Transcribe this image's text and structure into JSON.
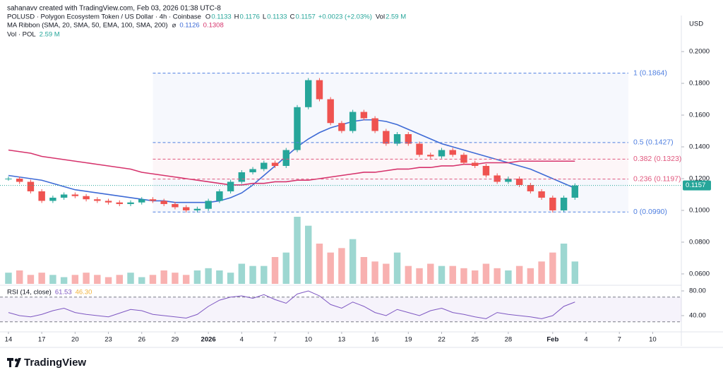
{
  "chart_data": {
    "type": "candlestick",
    "header": {
      "credit": "sahanavv created with TradingView.com, Feb 03, 2026 01:38 UTC-8",
      "symbol": "POLUSD · Polygon Ecosystem Token / US Dollar · 4h · Coinbase",
      "ohlc": [
        {
          "label": "O",
          "value": 0.1133
        },
        {
          "label": "H",
          "value": 0.1176
        },
        {
          "label": "L",
          "value": 0.1133
        },
        {
          "label": "C",
          "value": 0.1157
        }
      ],
      "change": "+0.0023 (+2.03%)",
      "vol_label": "Vol",
      "vol_value": "2.59 M"
    },
    "ma_legend": {
      "name": "MA Ribbon (SMA, 20, SMA, 50, EMA, 100, SMA, 200)",
      "symbol": "⌀",
      "values": [
        0.1126,
        0.1308
      ]
    },
    "volume_legend": {
      "name": "Vol · POL",
      "value": "2.59 M"
    },
    "currency": "USD",
    "brand": "TradingView",
    "x": [
      0,
      1,
      2,
      3,
      4,
      5,
      6,
      7,
      8,
      9,
      10,
      11,
      12,
      13,
      14,
      15,
      16,
      17,
      18,
      19,
      20,
      21,
      22,
      23,
      24,
      25,
      26,
      27,
      28,
      29,
      30,
      31,
      32,
      33,
      34,
      35,
      36,
      37,
      38,
      39,
      40,
      41,
      42,
      43,
      44,
      45,
      46,
      47,
      48,
      49,
      50,
      51
    ],
    "xlim": [
      -0.76,
      60.58
    ],
    "xticks": [
      {
        "value": 0,
        "label": "14"
      },
      {
        "value": 3,
        "label": "17"
      },
      {
        "value": 6,
        "label": "20"
      },
      {
        "value": 9,
        "label": "23"
      },
      {
        "value": 12,
        "label": "26"
      },
      {
        "value": 15,
        "label": "29"
      },
      {
        "value": 18,
        "label": "2026"
      },
      {
        "value": 21,
        "label": "4"
      },
      {
        "value": 24,
        "label": "7"
      },
      {
        "value": 27,
        "label": "10"
      },
      {
        "value": 30,
        "label": "13"
      },
      {
        "value": 33,
        "label": "16"
      },
      {
        "value": 36,
        "label": "19"
      },
      {
        "value": 39,
        "label": "22"
      },
      {
        "value": 42,
        "label": "25"
      },
      {
        "value": 45,
        "label": "28"
      },
      {
        "value": 49,
        "label": "Feb"
      },
      {
        "value": 52,
        "label": "4"
      },
      {
        "value": 55,
        "label": "7"
      },
      {
        "value": 58,
        "label": "10"
      }
    ],
    "ylim": [
      0.0533,
      0.2058
    ],
    "yticks": [
      {
        "value": 0.06,
        "label": "0.0600"
      },
      {
        "value": 0.08,
        "label": "0.0800"
      },
      {
        "value": 0.1,
        "label": "0.1000"
      },
      {
        "value": 0.12,
        "label": "0.1200"
      },
      {
        "value": 0.14,
        "label": "0.1400"
      },
      {
        "value": 0.16,
        "label": "0.1600"
      },
      {
        "value": 0.18,
        "label": "0.1800"
      },
      {
        "value": 0.2,
        "label": "0.2000"
      }
    ],
    "up_color": "#26a69a",
    "down_color": "#ef5350",
    "series": [
      {
        "name": "POLUSD",
        "values": [
          0.12,
          0.118,
          0.112,
          0.106,
          0.108,
          0.11,
          0.109,
          0.107,
          0.106,
          0.105,
          0.104,
          0.105,
          0.107,
          0.106,
          0.104,
          0.102,
          0.1,
          0.101,
          0.106,
          0.112,
          0.118,
          0.124,
          0.126,
          0.13,
          0.128,
          0.138,
          0.165,
          0.182,
          0.17,
          0.155,
          0.15,
          0.162,
          0.158,
          0.15,
          0.142,
          0.148,
          0.142,
          0.135,
          0.134,
          0.138,
          0.135,
          0.13,
          0.128,
          0.122,
          0.118,
          0.12,
          0.116,
          0.112,
          0.108,
          0.1,
          0.108,
          0.1157
        ]
      },
      {
        "color": "#3e6bd6",
        "values": [
          0.122,
          0.121,
          0.12,
          0.119,
          0.117,
          0.115,
          0.113,
          0.112,
          0.111,
          0.11,
          0.109,
          0.108,
          0.107,
          0.106,
          0.106,
          0.105,
          0.105,
          0.105,
          0.105,
          0.106,
          0.108,
          0.111,
          0.116,
          0.122,
          0.128,
          0.134,
          0.14,
          0.145,
          0.149,
          0.152,
          0.154,
          0.156,
          0.157,
          0.157,
          0.156,
          0.154,
          0.151,
          0.148,
          0.145,
          0.142,
          0.14,
          0.138,
          0.136,
          0.134,
          0.132,
          0.13,
          0.128,
          0.126,
          0.123,
          0.12,
          0.117,
          0.114
        ]
      },
      {
        "color": "#d6336c",
        "values": [
          0.138,
          0.137,
          0.136,
          0.134,
          0.133,
          0.132,
          0.131,
          0.13,
          0.129,
          0.128,
          0.127,
          0.126,
          0.124,
          0.123,
          0.122,
          0.121,
          0.12,
          0.119,
          0.118,
          0.117,
          0.116,
          0.116,
          0.117,
          0.117,
          0.118,
          0.118,
          0.119,
          0.119,
          0.12,
          0.121,
          0.122,
          0.123,
          0.124,
          0.124,
          0.125,
          0.126,
          0.126,
          0.127,
          0.127,
          0.128,
          0.128,
          0.129,
          0.129,
          0.13,
          0.13,
          0.13,
          0.131,
          0.131,
          0.131,
          0.131,
          0.131,
          0.131
        ]
      }
    ],
    "fib_levels": [
      {
        "label": "1 (0.1864)",
        "value": 0.1864,
        "color": "#4f7fe0"
      },
      {
        "label": "0.5 (0.1427)",
        "value": 0.1427,
        "color": "#4f7fe0"
      },
      {
        "label": "0.382 (0.1323)",
        "value": 0.1323,
        "color": "#e0577d"
      },
      {
        "label": "0.236 (0.1197)",
        "value": 0.1197,
        "color": "#e0577d"
      },
      {
        "label": "0 (0.0990)",
        "value": 0.099,
        "color": "#4f7fe0"
      }
    ],
    "volume": [
      5,
      6,
      4,
      5,
      4,
      3,
      4,
      5,
      4,
      3,
      4,
      5,
      3,
      4,
      6,
      5,
      4,
      6,
      7,
      6,
      5,
      9,
      8,
      8,
      12,
      14,
      30,
      26,
      18,
      14,
      16,
      20,
      12,
      10,
      9,
      14,
      8,
      7,
      9,
      8,
      8,
      7,
      6,
      9,
      7,
      6,
      8,
      7,
      10,
      14,
      18,
      10
    ],
    "rsi": {
      "label": "RSI (14, close)",
      "legend_values": [
        "61.53",
        "46.30"
      ],
      "color": "#7e57c2",
      "values": [
        45,
        40,
        38,
        42,
        48,
        52,
        45,
        42,
        40,
        38,
        44,
        50,
        48,
        42,
        40,
        38,
        36,
        42,
        55,
        65,
        70,
        72,
        68,
        74,
        66,
        60,
        75,
        80,
        72,
        58,
        52,
        62,
        55,
        45,
        40,
        50,
        45,
        40,
        48,
        52,
        45,
        42,
        38,
        35,
        45,
        42,
        40,
        38,
        35,
        40,
        55,
        62
      ],
      "ylim": [
        13.7,
        88
      ],
      "yticks": [
        {
          "value": 40,
          "label": "40.00"
        },
        {
          "value": 80,
          "label": "80.00"
        }
      ],
      "bands": [
        30,
        70
      ]
    }
  }
}
